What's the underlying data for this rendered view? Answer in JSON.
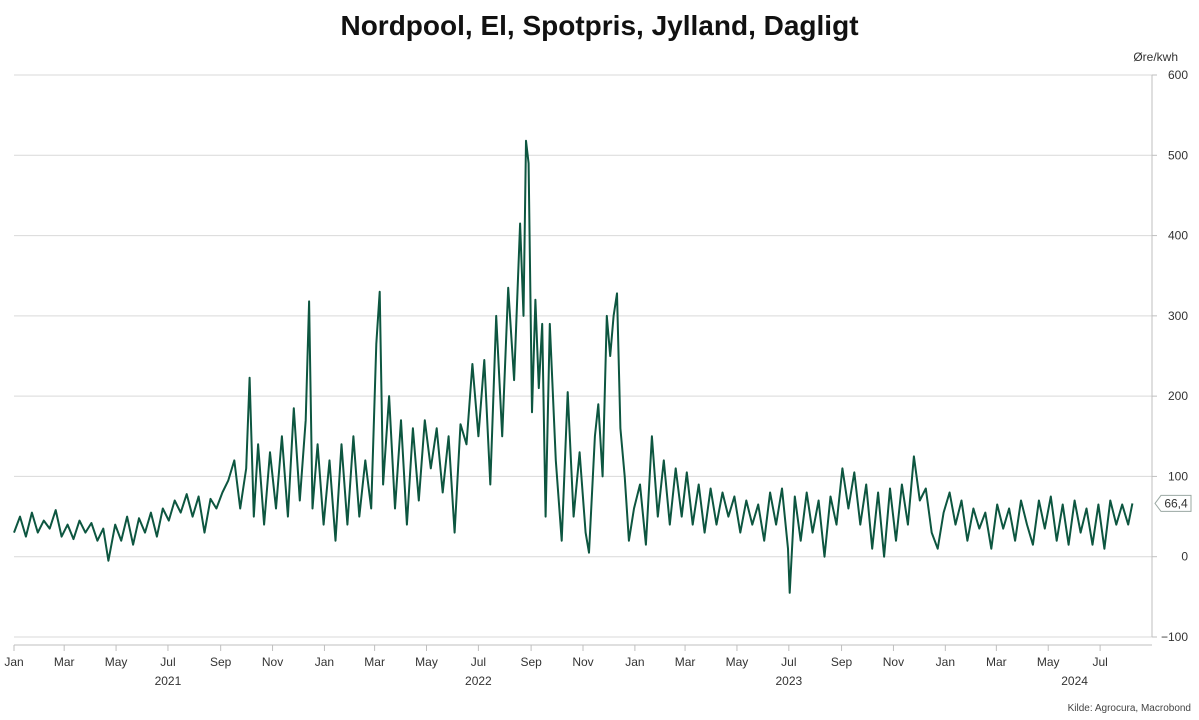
{
  "chart_data": {
    "type": "line",
    "title": "Nordpool, El, Spotpris, Jylland, Dagligt",
    "unit_label": "Øre/kwh",
    "xlabel": "",
    "ylabel": "",
    "ylim": [
      -100,
      600
    ],
    "y_ticks": [
      600,
      500,
      400,
      300,
      200,
      100,
      0,
      -100
    ],
    "x_range": [
      "2021-01-01",
      "2024-08-31"
    ],
    "x_tick_labels": [
      {
        "label": "Jan",
        "date": "2021-01-01"
      },
      {
        "label": "Mar",
        "date": "2021-03-01"
      },
      {
        "label": "May",
        "date": "2021-05-01"
      },
      {
        "label": "Jul",
        "date": "2021-07-01"
      },
      {
        "label": "Sep",
        "date": "2021-09-01"
      },
      {
        "label": "Nov",
        "date": "2021-11-01"
      },
      {
        "label": "Jan",
        "date": "2022-01-01"
      },
      {
        "label": "Mar",
        "date": "2022-03-01"
      },
      {
        "label": "May",
        "date": "2022-05-01"
      },
      {
        "label": "Jul",
        "date": "2022-07-01"
      },
      {
        "label": "Sep",
        "date": "2022-09-01"
      },
      {
        "label": "Nov",
        "date": "2022-11-01"
      },
      {
        "label": "Jan",
        "date": "2023-01-01"
      },
      {
        "label": "Mar",
        "date": "2023-03-01"
      },
      {
        "label": "May",
        "date": "2023-05-01"
      },
      {
        "label": "Jul",
        "date": "2023-07-01"
      },
      {
        "label": "Sep",
        "date": "2023-09-01"
      },
      {
        "label": "Nov",
        "date": "2023-11-01"
      },
      {
        "label": "Jan",
        "date": "2024-01-01"
      },
      {
        "label": "Mar",
        "date": "2024-03-01"
      },
      {
        "label": "May",
        "date": "2024-05-01"
      },
      {
        "label": "Jul",
        "date": "2024-07-01"
      }
    ],
    "year_labels": [
      {
        "label": "2021",
        "date": "2021-07-01"
      },
      {
        "label": "2022",
        "date": "2022-07-01"
      },
      {
        "label": "2023",
        "date": "2023-07-01"
      },
      {
        "label": "2024",
        "date": "2024-06-01"
      }
    ],
    "grid": true,
    "series": [
      {
        "color": "#0d5640",
        "last_value_label": "66,4",
        "points": [
          [
            "2021-01-01",
            30
          ],
          [
            "2021-01-08",
            50
          ],
          [
            "2021-01-15",
            25
          ],
          [
            "2021-01-22",
            55
          ],
          [
            "2021-01-29",
            30
          ],
          [
            "2021-02-05",
            45
          ],
          [
            "2021-02-12",
            35
          ],
          [
            "2021-02-19",
            58
          ],
          [
            "2021-02-26",
            25
          ],
          [
            "2021-03-05",
            40
          ],
          [
            "2021-03-12",
            22
          ],
          [
            "2021-03-19",
            45
          ],
          [
            "2021-03-26",
            30
          ],
          [
            "2021-04-02",
            42
          ],
          [
            "2021-04-09",
            20
          ],
          [
            "2021-04-16",
            35
          ],
          [
            "2021-04-22",
            -5
          ],
          [
            "2021-04-30",
            40
          ],
          [
            "2021-05-07",
            20
          ],
          [
            "2021-05-14",
            50
          ],
          [
            "2021-05-21",
            15
          ],
          [
            "2021-05-28",
            48
          ],
          [
            "2021-06-04",
            30
          ],
          [
            "2021-06-11",
            55
          ],
          [
            "2021-06-18",
            25
          ],
          [
            "2021-06-25",
            60
          ],
          [
            "2021-07-02",
            45
          ],
          [
            "2021-07-09",
            70
          ],
          [
            "2021-07-16",
            55
          ],
          [
            "2021-07-23",
            78
          ],
          [
            "2021-07-30",
            50
          ],
          [
            "2021-08-06",
            75
          ],
          [
            "2021-08-13",
            30
          ],
          [
            "2021-08-20",
            72
          ],
          [
            "2021-08-27",
            60
          ],
          [
            "2021-09-03",
            80
          ],
          [
            "2021-09-10",
            95
          ],
          [
            "2021-09-17",
            120
          ],
          [
            "2021-09-24",
            60
          ],
          [
            "2021-10-01",
            110
          ],
          [
            "2021-10-05",
            223
          ],
          [
            "2021-10-10",
            50
          ],
          [
            "2021-10-15",
            140
          ],
          [
            "2021-10-22",
            40
          ],
          [
            "2021-10-29",
            130
          ],
          [
            "2021-11-05",
            60
          ],
          [
            "2021-11-12",
            150
          ],
          [
            "2021-11-19",
            50
          ],
          [
            "2021-11-26",
            185
          ],
          [
            "2021-12-03",
            70
          ],
          [
            "2021-12-10",
            170
          ],
          [
            "2021-12-14",
            318
          ],
          [
            "2021-12-18",
            60
          ],
          [
            "2021-12-24",
            140
          ],
          [
            "2021-12-31",
            40
          ],
          [
            "2022-01-07",
            120
          ],
          [
            "2022-01-14",
            20
          ],
          [
            "2022-01-21",
            140
          ],
          [
            "2022-01-28",
            40
          ],
          [
            "2022-02-04",
            150
          ],
          [
            "2022-02-11",
            50
          ],
          [
            "2022-02-18",
            120
          ],
          [
            "2022-02-25",
            60
          ],
          [
            "2022-03-03",
            265
          ],
          [
            "2022-03-07",
            330
          ],
          [
            "2022-03-11",
            90
          ],
          [
            "2022-03-18",
            200
          ],
          [
            "2022-03-25",
            60
          ],
          [
            "2022-04-01",
            170
          ],
          [
            "2022-04-08",
            40
          ],
          [
            "2022-04-15",
            160
          ],
          [
            "2022-04-22",
            70
          ],
          [
            "2022-04-29",
            170
          ],
          [
            "2022-05-06",
            110
          ],
          [
            "2022-05-13",
            160
          ],
          [
            "2022-05-20",
            80
          ],
          [
            "2022-05-27",
            150
          ],
          [
            "2022-06-03",
            30
          ],
          [
            "2022-06-10",
            165
          ],
          [
            "2022-06-17",
            140
          ],
          [
            "2022-06-24",
            240
          ],
          [
            "2022-07-01",
            150
          ],
          [
            "2022-07-08",
            245
          ],
          [
            "2022-07-15",
            90
          ],
          [
            "2022-07-22",
            300
          ],
          [
            "2022-07-29",
            150
          ],
          [
            "2022-08-05",
            335
          ],
          [
            "2022-08-12",
            220
          ],
          [
            "2022-08-19",
            415
          ],
          [
            "2022-08-23",
            300
          ],
          [
            "2022-08-26",
            518
          ],
          [
            "2022-08-29",
            490
          ],
          [
            "2022-09-02",
            180
          ],
          [
            "2022-09-06",
            320
          ],
          [
            "2022-09-10",
            210
          ],
          [
            "2022-09-14",
            290
          ],
          [
            "2022-09-18",
            50
          ],
          [
            "2022-09-23",
            290
          ],
          [
            "2022-09-30",
            120
          ],
          [
            "2022-10-07",
            20
          ],
          [
            "2022-10-14",
            205
          ],
          [
            "2022-10-21",
            50
          ],
          [
            "2022-10-28",
            130
          ],
          [
            "2022-11-04",
            30
          ],
          [
            "2022-11-08",
            5
          ],
          [
            "2022-11-15",
            150
          ],
          [
            "2022-11-19",
            190
          ],
          [
            "2022-11-24",
            100
          ],
          [
            "2022-11-29",
            300
          ],
          [
            "2022-12-03",
            250
          ],
          [
            "2022-12-07",
            300
          ],
          [
            "2022-12-11",
            328
          ],
          [
            "2022-12-15",
            160
          ],
          [
            "2022-12-20",
            100
          ],
          [
            "2022-12-25",
            20
          ],
          [
            "2022-12-31",
            60
          ],
          [
            "2023-01-07",
            90
          ],
          [
            "2023-01-14",
            15
          ],
          [
            "2023-01-21",
            150
          ],
          [
            "2023-01-28",
            50
          ],
          [
            "2023-02-04",
            120
          ],
          [
            "2023-02-11",
            40
          ],
          [
            "2023-02-18",
            110
          ],
          [
            "2023-02-25",
            50
          ],
          [
            "2023-03-03",
            105
          ],
          [
            "2023-03-10",
            40
          ],
          [
            "2023-03-17",
            90
          ],
          [
            "2023-03-24",
            30
          ],
          [
            "2023-03-31",
            85
          ],
          [
            "2023-04-07",
            40
          ],
          [
            "2023-04-14",
            80
          ],
          [
            "2023-04-21",
            50
          ],
          [
            "2023-04-28",
            75
          ],
          [
            "2023-05-05",
            30
          ],
          [
            "2023-05-12",
            70
          ],
          [
            "2023-05-19",
            40
          ],
          [
            "2023-05-26",
            65
          ],
          [
            "2023-06-02",
            20
          ],
          [
            "2023-06-09",
            80
          ],
          [
            "2023-06-16",
            40
          ],
          [
            "2023-06-23",
            85
          ],
          [
            "2023-06-30",
            10
          ],
          [
            "2023-07-02",
            -45
          ],
          [
            "2023-07-08",
            75
          ],
          [
            "2023-07-15",
            20
          ],
          [
            "2023-07-22",
            80
          ],
          [
            "2023-07-29",
            30
          ],
          [
            "2023-08-05",
            70
          ],
          [
            "2023-08-12",
            0
          ],
          [
            "2023-08-19",
            75
          ],
          [
            "2023-08-26",
            40
          ],
          [
            "2023-09-02",
            110
          ],
          [
            "2023-09-09",
            60
          ],
          [
            "2023-09-16",
            105
          ],
          [
            "2023-09-23",
            40
          ],
          [
            "2023-09-30",
            90
          ],
          [
            "2023-10-07",
            10
          ],
          [
            "2023-10-14",
            80
          ],
          [
            "2023-10-21",
            0
          ],
          [
            "2023-10-28",
            85
          ],
          [
            "2023-11-04",
            20
          ],
          [
            "2023-11-11",
            90
          ],
          [
            "2023-11-18",
            40
          ],
          [
            "2023-11-25",
            125
          ],
          [
            "2023-12-02",
            70
          ],
          [
            "2023-12-09",
            85
          ],
          [
            "2023-12-16",
            30
          ],
          [
            "2023-12-23",
            10
          ],
          [
            "2023-12-30",
            55
          ],
          [
            "2024-01-06",
            80
          ],
          [
            "2024-01-13",
            40
          ],
          [
            "2024-01-20",
            70
          ],
          [
            "2024-01-27",
            20
          ],
          [
            "2024-02-03",
            60
          ],
          [
            "2024-02-10",
            35
          ],
          [
            "2024-02-17",
            55
          ],
          [
            "2024-02-24",
            10
          ],
          [
            "2024-03-02",
            65
          ],
          [
            "2024-03-09",
            35
          ],
          [
            "2024-03-16",
            60
          ],
          [
            "2024-03-23",
            20
          ],
          [
            "2024-03-30",
            70
          ],
          [
            "2024-04-06",
            40
          ],
          [
            "2024-04-13",
            15
          ],
          [
            "2024-04-20",
            70
          ],
          [
            "2024-04-27",
            35
          ],
          [
            "2024-05-04",
            75
          ],
          [
            "2024-05-11",
            20
          ],
          [
            "2024-05-18",
            65
          ],
          [
            "2024-05-25",
            15
          ],
          [
            "2024-06-01",
            70
          ],
          [
            "2024-06-08",
            30
          ],
          [
            "2024-06-15",
            60
          ],
          [
            "2024-06-22",
            15
          ],
          [
            "2024-06-29",
            65
          ],
          [
            "2024-07-06",
            10
          ],
          [
            "2024-07-13",
            70
          ],
          [
            "2024-07-20",
            40
          ],
          [
            "2024-07-27",
            65
          ],
          [
            "2024-08-03",
            40
          ],
          [
            "2024-08-08",
            66.4
          ]
        ]
      }
    ]
  },
  "source_note": "Kilde: Agrocura, Macrobond"
}
